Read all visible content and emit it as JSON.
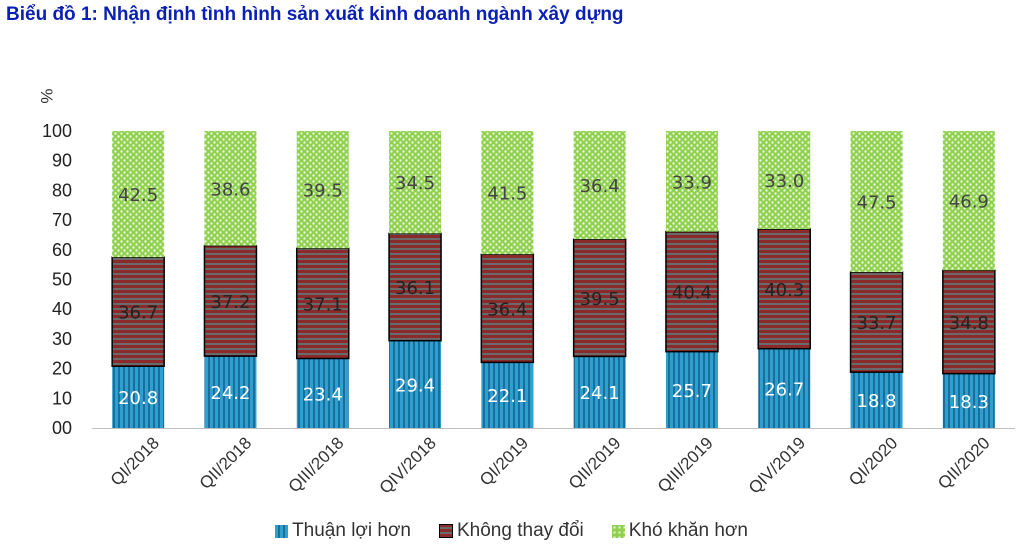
{
  "title": "Biểu đồ 1: Nhận định tình hình sản xuất kinh doanh ngành xây dựng",
  "colors": {
    "title": "#0a1fb4",
    "thuan_loi": "#2f9fd0",
    "khong_doi": "#7a1a1a",
    "kho_khan": "#8fd14f"
  },
  "chart_data": {
    "type": "bar",
    "stacked": true,
    "ylabel": "%",
    "ylim": [
      0,
      100
    ],
    "yticks": [
      "00",
      "10",
      "20",
      "30",
      "40",
      "50",
      "60",
      "70",
      "80",
      "90",
      "100"
    ],
    "categories": [
      "QI/2018",
      "QII/2018",
      "QIII/2018",
      "QIV/2018",
      "QI/2019",
      "QII/2019",
      "QIII/2019",
      "QIV/2019",
      "QI/2020",
      "QII/2020"
    ],
    "series": [
      {
        "name": "Thuận lợi hơn",
        "values": [
          20.8,
          24.2,
          23.4,
          29.4,
          22.1,
          24.1,
          25.7,
          26.7,
          18.8,
          18.3
        ]
      },
      {
        "name": "Không thay đổi",
        "values": [
          36.7,
          37.2,
          37.1,
          36.1,
          36.4,
          39.5,
          40.4,
          40.3,
          33.7,
          34.8
        ]
      },
      {
        "name": "Khó khăn hơn",
        "values": [
          42.5,
          38.6,
          39.5,
          34.5,
          41.5,
          36.4,
          33.9,
          33.0,
          47.5,
          46.9
        ]
      }
    ],
    "legend_position": "bottom"
  }
}
